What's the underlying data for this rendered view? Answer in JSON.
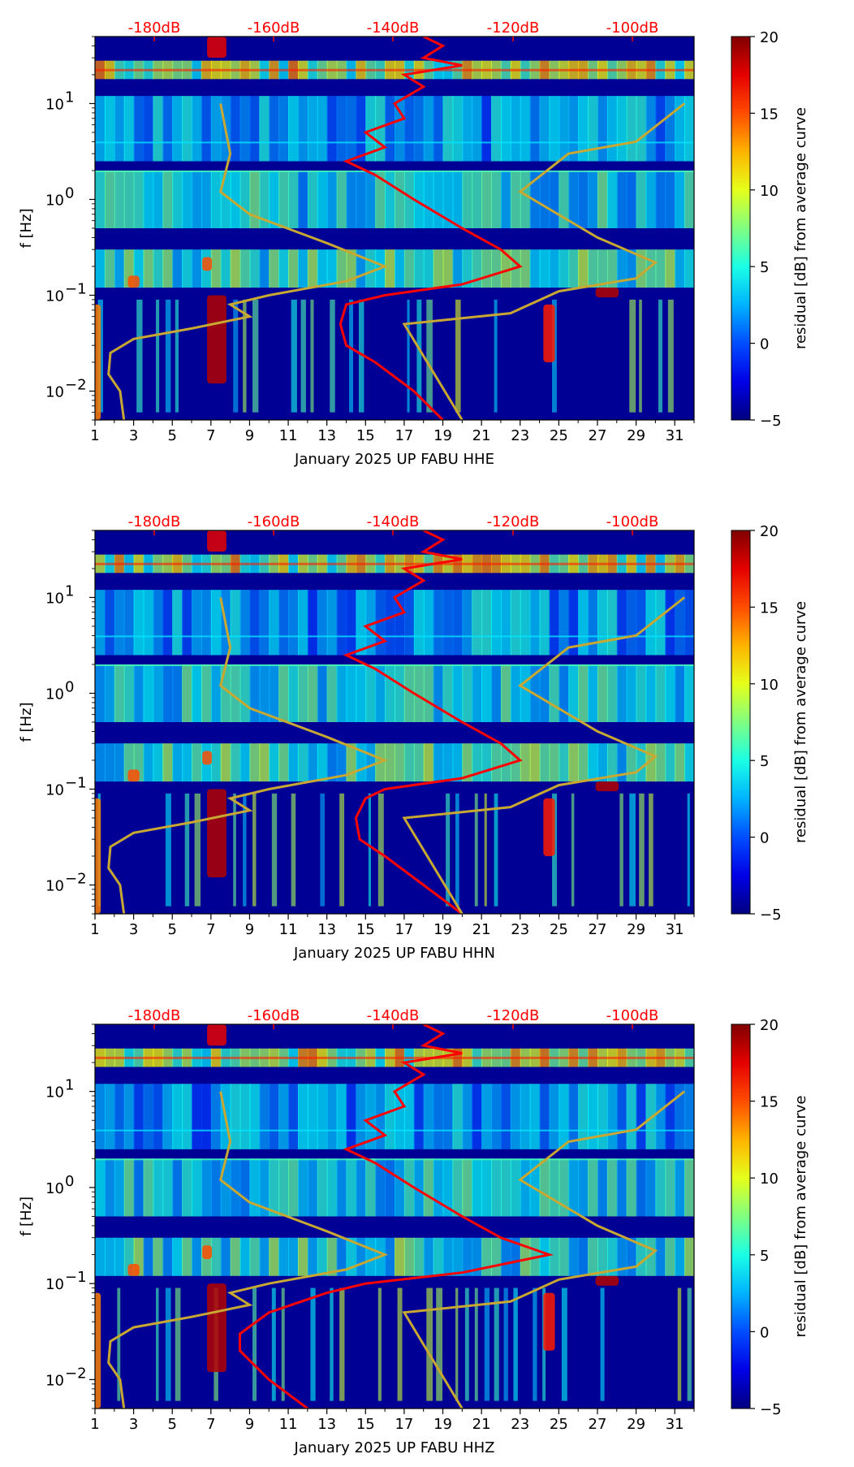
{
  "chart_data": [
    {
      "type": "heatmap",
      "title": "",
      "xlabel": "January 2025 UP FABU  HHE",
      "ylabel": "f [Hz]",
      "x_ticks": [
        "1",
        "3",
        "5",
        "7",
        "9",
        "11",
        "13",
        "15",
        "17",
        "19",
        "21",
        "23",
        "25",
        "27",
        "29",
        "31"
      ],
      "xlim": [
        1,
        32
      ],
      "ylim": [
        0.005,
        50
      ],
      "y_ticks": [
        {
          "base": "10",
          "exp": "−2"
        },
        {
          "base": "10",
          "exp": "−1"
        },
        {
          "base": "10",
          "exp": "0"
        },
        {
          "base": "10",
          "exp": "1"
        }
      ],
      "top_db_labels": [
        "-180dB",
        "-160dB",
        "-140dB",
        "-120dB",
        "-100dB"
      ],
      "colorbar": {
        "label": "residual [dB] from average curve",
        "ticks": [
          "20",
          "15",
          "10",
          "5",
          "0",
          "−5"
        ],
        "range": [
          -5,
          20
        ],
        "colormap": "jet"
      },
      "series": [
        {
          "name": "red average PSD curve",
          "color": "#ff0000",
          "units": "day vs Hz",
          "points": [
            [
              19,
              0.005
            ],
            [
              17.5,
              0.01
            ],
            [
              15.5,
              0.02
            ],
            [
              14,
              0.03
            ],
            [
              13.7,
              0.05
            ],
            [
              14,
              0.08
            ],
            [
              16,
              0.1
            ],
            [
              20,
              0.13
            ],
            [
              23,
              0.2
            ],
            [
              22,
              0.3
            ],
            [
              20,
              0.5
            ],
            [
              17.5,
              1
            ],
            [
              15.5,
              1.8
            ],
            [
              14,
              2.5
            ],
            [
              16,
              3.5
            ],
            [
              15,
              5
            ],
            [
              17,
              7
            ],
            [
              16.5,
              10
            ],
            [
              18,
              15
            ],
            [
              17,
              20
            ],
            [
              20,
              25
            ],
            [
              18,
              30
            ],
            [
              19,
              40
            ],
            [
              18,
              50
            ]
          ]
        },
        {
          "name": "gold noise model curves",
          "color": "#c8a832",
          "points": [
            [
              2.5,
              0.005
            ],
            [
              2.3,
              0.01
            ],
            [
              1.7,
              0.015
            ],
            [
              1.8,
              0.025
            ],
            [
              3,
              0.035
            ],
            [
              6,
              0.045
            ],
            [
              9,
              0.06
            ],
            [
              8,
              0.08
            ],
            [
              10,
              0.1
            ],
            [
              14,
              0.14
            ],
            [
              16,
              0.2
            ],
            [
              13,
              0.35
            ],
            [
              9,
              0.7
            ],
            [
              7.5,
              1.2
            ],
            [
              8,
              3
            ],
            [
              7.5,
              10
            ]
          ],
          "points_2": [
            [
              20,
              0.005
            ],
            [
              17,
              0.05
            ],
            [
              22.5,
              0.065
            ],
            [
              25,
              0.11
            ],
            [
              29,
              0.15
            ],
            [
              30,
              0.22
            ],
            [
              27,
              0.4
            ],
            [
              23,
              1.2
            ],
            [
              25.5,
              3
            ],
            [
              29,
              4
            ],
            [
              31.5,
              10
            ]
          ]
        }
      ]
    },
    {
      "type": "heatmap",
      "title": "",
      "xlabel": "January 2025 UP FABU  HHN",
      "ylabel": "f [Hz]",
      "x_ticks": [
        "1",
        "3",
        "5",
        "7",
        "9",
        "11",
        "13",
        "15",
        "17",
        "19",
        "21",
        "23",
        "25",
        "27",
        "29",
        "31"
      ],
      "xlim": [
        1,
        32
      ],
      "ylim": [
        0.005,
        50
      ],
      "y_ticks": [
        {
          "base": "10",
          "exp": "−2"
        },
        {
          "base": "10",
          "exp": "−1"
        },
        {
          "base": "10",
          "exp": "0"
        },
        {
          "base": "10",
          "exp": "1"
        }
      ],
      "top_db_labels": [
        "-180dB",
        "-160dB",
        "-140dB",
        "-120dB",
        "-100dB"
      ],
      "colorbar": {
        "label": "residual [dB] from average curve",
        "ticks": [
          "20",
          "15",
          "10",
          "5",
          "0",
          "−5"
        ],
        "range": [
          -5,
          20
        ],
        "colormap": "jet"
      },
      "series": [
        {
          "name": "red average PSD curve",
          "color": "#ff0000",
          "units": "day vs Hz",
          "points": [
            [
              20,
              0.005
            ],
            [
              18,
              0.01
            ],
            [
              16,
              0.02
            ],
            [
              14.7,
              0.03
            ],
            [
              14.5,
              0.05
            ],
            [
              15,
              0.08
            ],
            [
              16,
              0.1
            ],
            [
              20,
              0.13
            ],
            [
              23,
              0.2
            ],
            [
              22,
              0.3
            ],
            [
              20,
              0.5
            ],
            [
              17.5,
              1
            ],
            [
              15.5,
              1.8
            ],
            [
              14,
              2.5
            ],
            [
              16,
              3.5
            ],
            [
              15,
              5
            ],
            [
              17,
              7
            ],
            [
              16.5,
              10
            ],
            [
              18,
              15
            ],
            [
              17,
              20
            ],
            [
              20,
              25
            ],
            [
              18,
              30
            ],
            [
              19,
              40
            ],
            [
              18,
              50
            ]
          ]
        },
        {
          "name": "gold noise model curves",
          "color": "#c8a832",
          "points": [
            [
              2.5,
              0.005
            ],
            [
              2.3,
              0.01
            ],
            [
              1.7,
              0.015
            ],
            [
              1.8,
              0.025
            ],
            [
              3,
              0.035
            ],
            [
              6,
              0.045
            ],
            [
              9,
              0.06
            ],
            [
              8,
              0.08
            ],
            [
              10,
              0.1
            ],
            [
              14,
              0.14
            ],
            [
              16,
              0.2
            ],
            [
              13,
              0.35
            ],
            [
              9,
              0.7
            ],
            [
              7.5,
              1.2
            ],
            [
              8,
              3
            ],
            [
              7.5,
              10
            ]
          ],
          "points_2": [
            [
              20,
              0.005
            ],
            [
              17,
              0.05
            ],
            [
              22.5,
              0.065
            ],
            [
              25,
              0.11
            ],
            [
              29,
              0.15
            ],
            [
              30,
              0.22
            ],
            [
              27,
              0.4
            ],
            [
              23,
              1.2
            ],
            [
              25.5,
              3
            ],
            [
              29,
              4
            ],
            [
              31.5,
              10
            ]
          ]
        }
      ]
    },
    {
      "type": "heatmap",
      "title": "",
      "xlabel": "January 2025 UP FABU  HHZ",
      "ylabel": "f [Hz]",
      "x_ticks": [
        "1",
        "3",
        "5",
        "7",
        "9",
        "11",
        "13",
        "15",
        "17",
        "19",
        "21",
        "23",
        "25",
        "27",
        "29",
        "31"
      ],
      "xlim": [
        1,
        32
      ],
      "ylim": [
        0.005,
        50
      ],
      "y_ticks": [
        {
          "base": "10",
          "exp": "−2"
        },
        {
          "base": "10",
          "exp": "−1"
        },
        {
          "base": "10",
          "exp": "0"
        },
        {
          "base": "10",
          "exp": "1"
        }
      ],
      "top_db_labels": [
        "-180dB",
        "-160dB",
        "-140dB",
        "-120dB",
        "-100dB"
      ],
      "colorbar": {
        "label": "residual [dB] from average curve",
        "ticks": [
          "20",
          "15",
          "10",
          "5",
          "0",
          "−5"
        ],
        "range": [
          -5,
          20
        ],
        "colormap": "jet"
      },
      "series": [
        {
          "name": "red average PSD curve",
          "color": "#ff0000",
          "units": "day vs Hz",
          "points": [
            [
              12,
              0.005
            ],
            [
              10,
              0.01
            ],
            [
              8.5,
              0.02
            ],
            [
              8.5,
              0.03
            ],
            [
              10,
              0.05
            ],
            [
              13,
              0.08
            ],
            [
              15,
              0.1
            ],
            [
              20,
              0.13
            ],
            [
              24.5,
              0.2
            ],
            [
              22,
              0.3
            ],
            [
              20,
              0.5
            ],
            [
              17.5,
              1
            ],
            [
              15.5,
              1.8
            ],
            [
              14,
              2.5
            ],
            [
              16,
              3.5
            ],
            [
              15,
              5
            ],
            [
              17,
              7
            ],
            [
              16.5,
              10
            ],
            [
              18,
              15
            ],
            [
              17,
              20
            ],
            [
              20,
              25
            ],
            [
              18,
              30
            ],
            [
              19,
              40
            ],
            [
              18,
              50
            ]
          ]
        },
        {
          "name": "gold noise model curves",
          "color": "#c8a832",
          "points": [
            [
              2.5,
              0.005
            ],
            [
              2.3,
              0.01
            ],
            [
              1.7,
              0.015
            ],
            [
              1.8,
              0.025
            ],
            [
              3,
              0.035
            ],
            [
              6,
              0.045
            ],
            [
              9,
              0.06
            ],
            [
              8,
              0.08
            ],
            [
              10,
              0.1
            ],
            [
              14,
              0.14
            ],
            [
              16,
              0.2
            ],
            [
              13,
              0.35
            ],
            [
              9,
              0.7
            ],
            [
              7.5,
              1.2
            ],
            [
              8,
              3
            ],
            [
              7.5,
              10
            ]
          ],
          "points_2": [
            [
              20,
              0.005
            ],
            [
              17,
              0.05
            ],
            [
              22.5,
              0.065
            ],
            [
              25,
              0.11
            ],
            [
              29,
              0.15
            ],
            [
              30,
              0.22
            ],
            [
              27,
              0.4
            ],
            [
              23,
              1.2
            ],
            [
              25.5,
              3
            ],
            [
              29,
              4
            ],
            [
              31.5,
              10
            ]
          ]
        }
      ]
    }
  ],
  "colors": {
    "db_label": "#ff0000",
    "red_curve": "#ff0000",
    "gold_curve": "#c8a832",
    "background_jet_low": "#00007f"
  }
}
